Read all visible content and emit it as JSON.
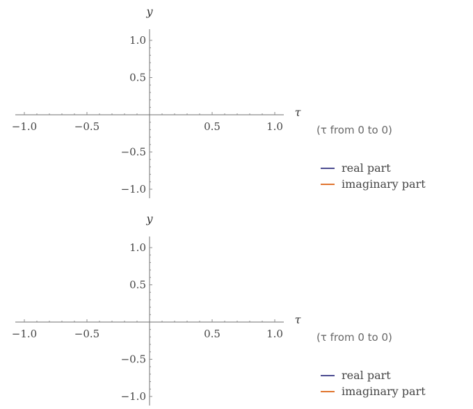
{
  "chart_data": [
    {
      "type": "line",
      "xlabel": "τ",
      "ylabel": "y",
      "xlim": [
        -1.0,
        1.0
      ],
      "ylim": [
        -1.0,
        1.0
      ],
      "x_ticks": [
        -1.0,
        -0.5,
        0.5,
        1.0
      ],
      "y_ticks": [
        -1.0,
        -0.5,
        0.5,
        1.0
      ],
      "x_tick_labels": [
        "−1.0",
        "−0.5",
        "0.5",
        "1.0"
      ],
      "y_tick_labels": [
        "−1.0",
        "−0.5",
        "0.5",
        "1.0"
      ],
      "range_note": "(τ from 0 to 0)",
      "grid": false,
      "legend_position": "right",
      "series": [
        {
          "name": "real part",
          "color": "#4a4a8f",
          "x": [],
          "y": []
        },
        {
          "name": "imaginary part",
          "color": "#e0742d",
          "x": [],
          "y": []
        }
      ]
    },
    {
      "type": "line",
      "xlabel": "τ",
      "ylabel": "y",
      "xlim": [
        -1.0,
        1.0
      ],
      "ylim": [
        -1.0,
        1.0
      ],
      "x_ticks": [
        -1.0,
        -0.5,
        0.5,
        1.0
      ],
      "y_ticks": [
        -1.0,
        -0.5,
        0.5,
        1.0
      ],
      "x_tick_labels": [
        "−1.0",
        "−0.5",
        "0.5",
        "1.0"
      ],
      "y_tick_labels": [
        "−1.0",
        "−0.5",
        "0.5",
        "1.0"
      ],
      "range_note": "(τ from 0 to 0)",
      "grid": false,
      "legend_position": "right",
      "series": [
        {
          "name": "real part",
          "color": "#4a4a8f",
          "x": [],
          "y": []
        },
        {
          "name": "imaginary part",
          "color": "#e0742d",
          "x": [],
          "y": []
        }
      ]
    }
  ]
}
